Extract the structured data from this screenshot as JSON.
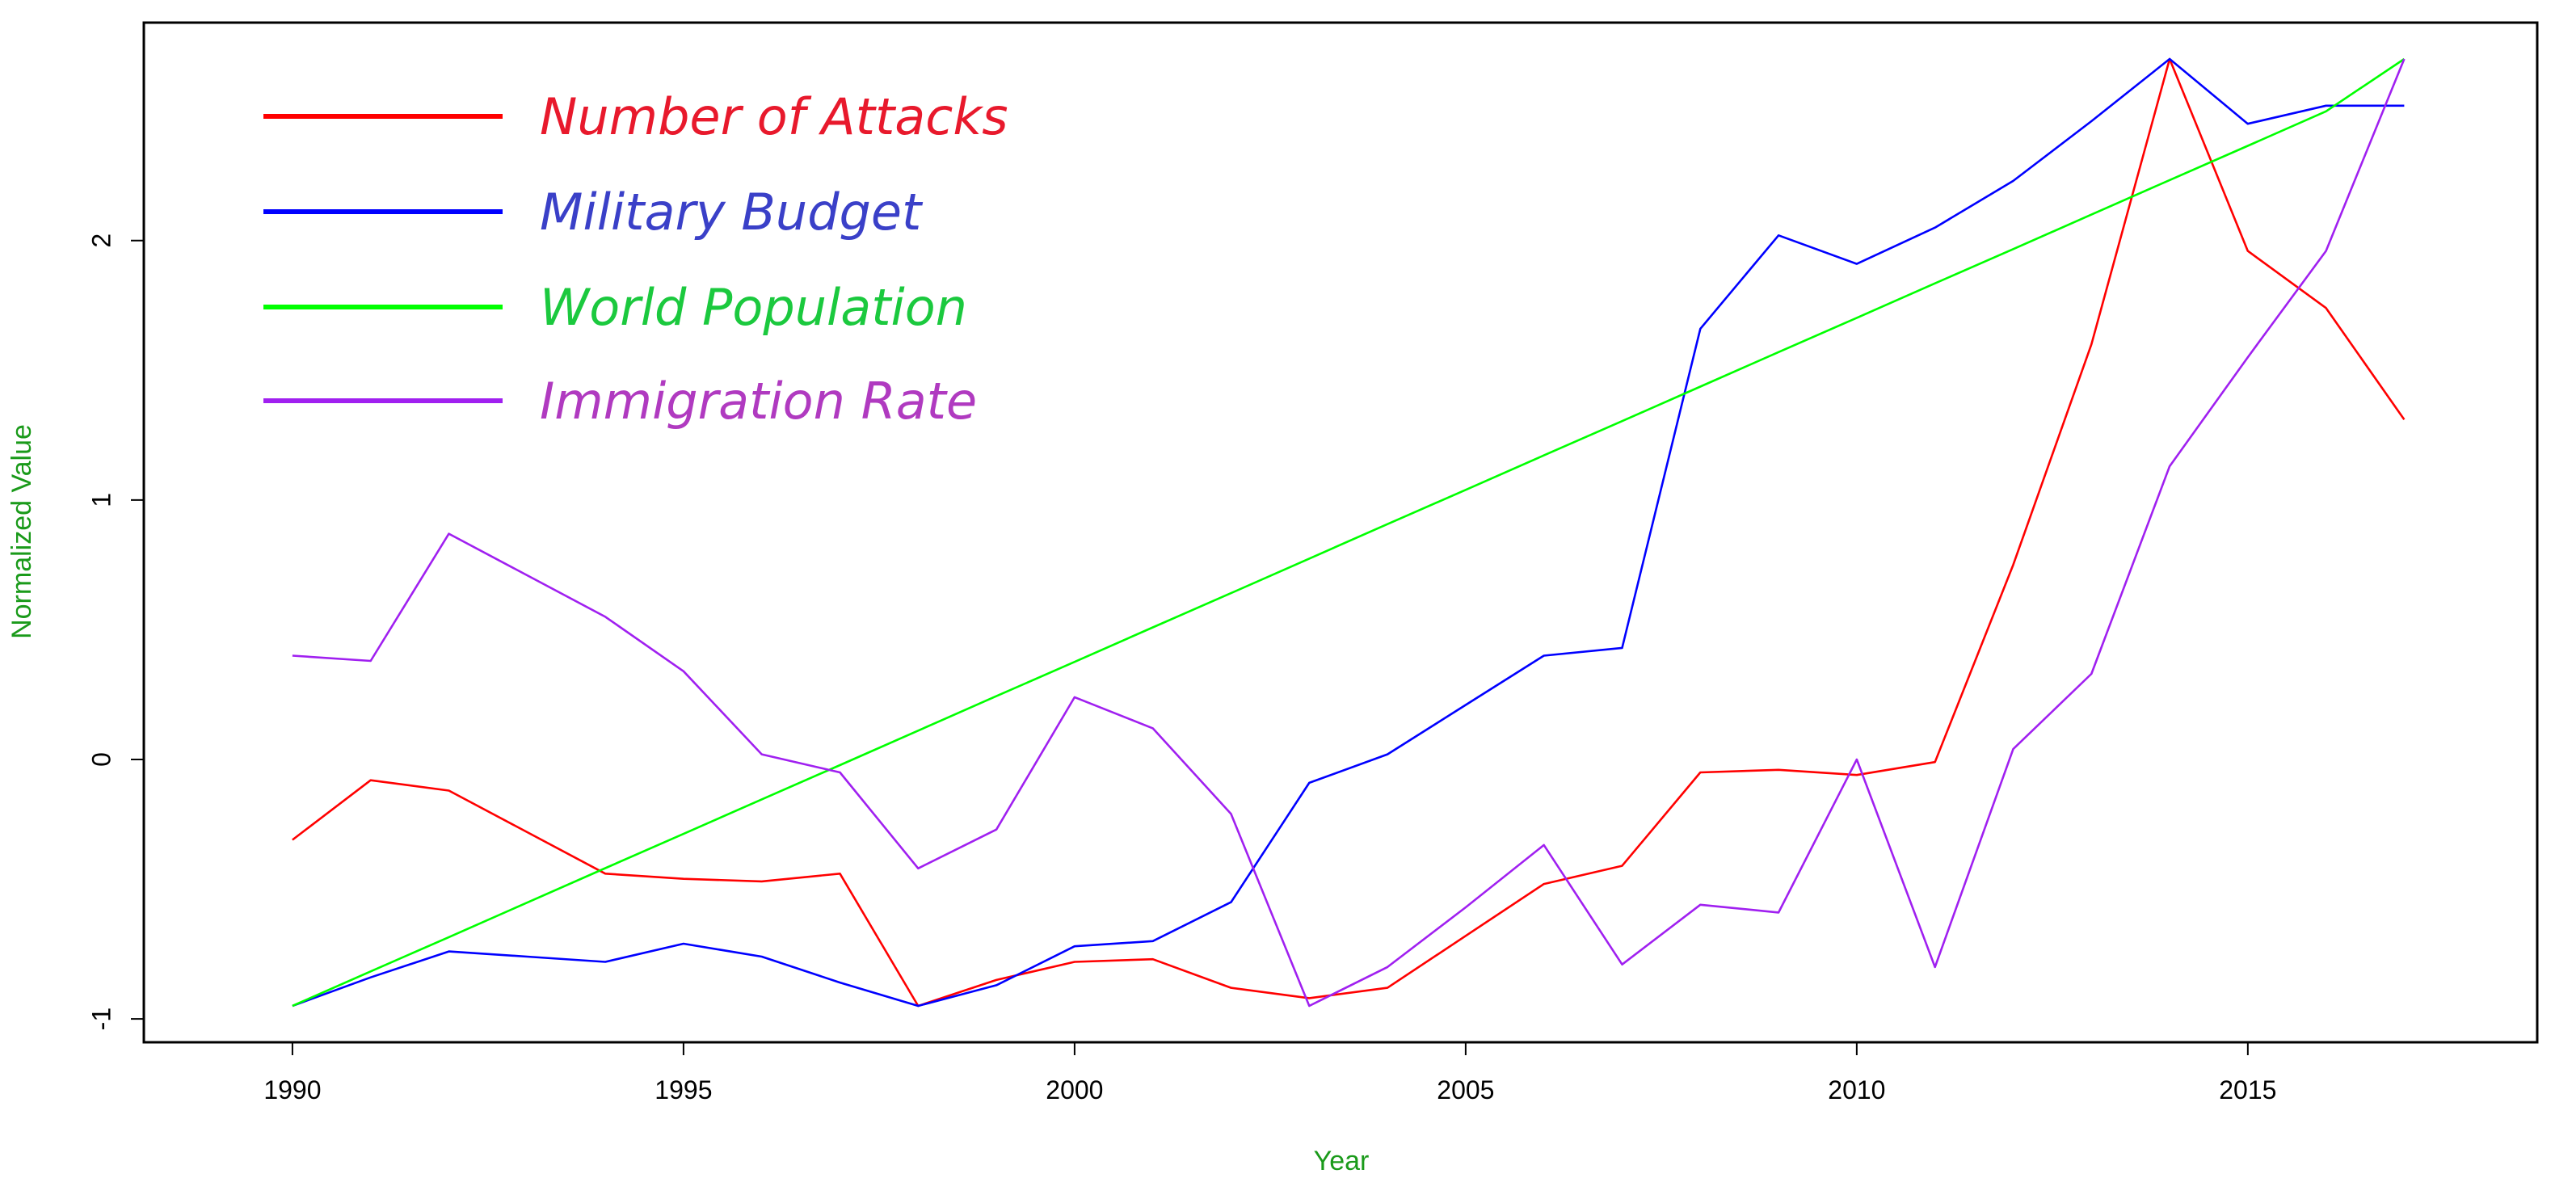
{
  "chart_data": {
    "type": "line",
    "xlabel": "Year",
    "ylabel": "Normalized Value",
    "xlim": [
      1988.1,
      2018.7
    ],
    "ylim": [
      -1.09,
      2.84
    ],
    "x_ticks": [
      1990,
      1995,
      2000,
      2005,
      2010,
      2015
    ],
    "y_ticks": [
      -1,
      0,
      1,
      2
    ],
    "grid": false,
    "legend_position": "top-left",
    "axis_title_color": "#1a9a1a",
    "x": [
      1990,
      1991,
      1992,
      1993,
      1994,
      1995,
      1996,
      1997,
      1998,
      1999,
      2000,
      2001,
      2002,
      2003,
      2004,
      2005,
      2006,
      2007,
      2008,
      2009,
      2010,
      2011,
      2012,
      2013,
      2014,
      2015,
      2016,
      2017
    ],
    "series": [
      {
        "name": "Number of  Attacks",
        "color": "#ff0000",
        "legend_text_color": "#e8192c",
        "values": [
          -0.31,
          -0.08,
          -0.12,
          -0.28,
          -0.44,
          -0.46,
          -0.47,
          -0.44,
          -0.95,
          -0.85,
          -0.78,
          -0.77,
          -0.88,
          -0.92,
          -0.88,
          -0.68,
          -0.48,
          -0.41,
          -0.05,
          -0.04,
          -0.06,
          -0.01,
          0.75,
          1.6,
          2.7,
          1.96,
          1.74,
          1.31
        ]
      },
      {
        "name": "Military Budget",
        "color": "#0000ff",
        "legend_text_color": "#3a40c8",
        "values": [
          -0.95,
          -0.84,
          -0.74,
          -0.76,
          -0.78,
          -0.71,
          -0.76,
          -0.86,
          -0.95,
          -0.87,
          -0.72,
          -0.7,
          -0.55,
          -0.09,
          0.02,
          0.21,
          0.4,
          0.43,
          1.66,
          2.02,
          1.91,
          2.05,
          2.23,
          2.46,
          2.7,
          2.45,
          2.52,
          2.52
        ]
      },
      {
        "name": "World Population",
        "color": "#00ff00",
        "legend_text_color": "#1bc93e",
        "values": [
          -0.95,
          -0.817,
          -0.685,
          -0.552,
          -0.419,
          -0.287,
          -0.154,
          -0.022,
          0.111,
          0.244,
          0.376,
          0.509,
          0.641,
          0.774,
          0.907,
          1.039,
          1.172,
          1.304,
          1.437,
          1.57,
          1.702,
          1.835,
          1.967,
          2.1,
          2.233,
          2.365,
          2.498,
          2.7
        ]
      },
      {
        "name": "Immigration Rate",
        "color": "#a020f0",
        "legend_text_color": "#b03ac0",
        "values": [
          0.4,
          0.38,
          0.87,
          0.71,
          0.55,
          0.34,
          0.02,
          -0.05,
          -0.42,
          -0.27,
          0.24,
          0.12,
          -0.21,
          -0.95,
          -0.8,
          -0.57,
          -0.33,
          -0.79,
          -0.56,
          -0.59,
          0.0,
          -0.8,
          0.04,
          0.33,
          1.13,
          1.55,
          1.96,
          2.7
        ]
      }
    ]
  }
}
